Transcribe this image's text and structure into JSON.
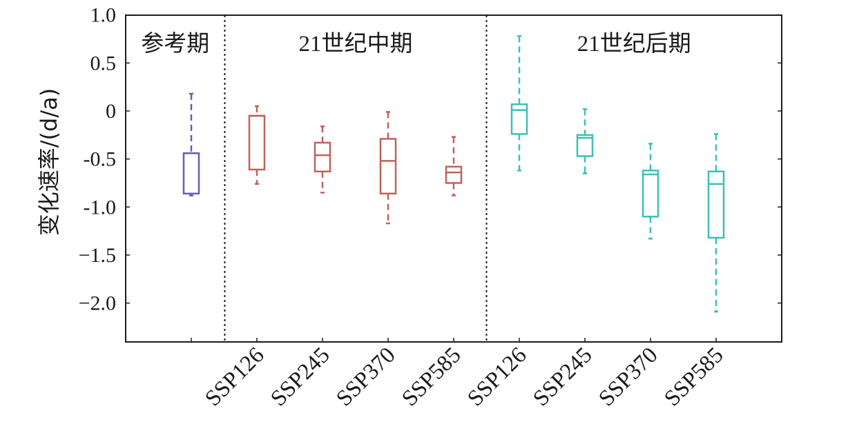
{
  "chart_data": {
    "type": "box",
    "ylabel": "变化速率/(d/a)",
    "ylim": [
      -2.4,
      1.0
    ],
    "yticks": [
      {
        "value": 1.0,
        "label": "1.0"
      },
      {
        "value": 0.5,
        "label": "0.5"
      },
      {
        "value": 0,
        "label": "0"
      },
      {
        "value": -0.5,
        "label": "-0.5"
      },
      {
        "value": -1.0,
        "label": "-1.0"
      },
      {
        "value": -1.5,
        "label": "−1.5"
      },
      {
        "value": -2.0,
        "label": "−2.0"
      }
    ],
    "groups": [
      {
        "label": "参考期",
        "color": "#6a5bb0"
      },
      {
        "label": "21世纪中期",
        "color": "#c0625a"
      },
      {
        "label": "21世纪后期",
        "color": "#3dbfb8"
      }
    ],
    "boxes": [
      {
        "group": 0,
        "label": "",
        "whisker_high": 0.18,
        "q3": -0.44,
        "median": -0.44,
        "q1": -0.86,
        "whisker_low": -0.88
      },
      {
        "group": 1,
        "label": "SSP126",
        "whisker_high": 0.05,
        "q3": -0.05,
        "median": -0.05,
        "q1": -0.61,
        "whisker_low": -0.76
      },
      {
        "group": 1,
        "label": "SSP245",
        "whisker_high": -0.16,
        "q3": -0.33,
        "median": -0.46,
        "q1": -0.63,
        "whisker_low": -0.85
      },
      {
        "group": 1,
        "label": "SSP370",
        "whisker_high": -0.01,
        "q3": -0.29,
        "median": -0.52,
        "q1": -0.86,
        "whisker_low": -1.17
      },
      {
        "group": 1,
        "label": "SSP585",
        "whisker_high": -0.27,
        "q3": -0.58,
        "median": -0.64,
        "q1": -0.75,
        "whisker_low": -0.88
      },
      {
        "group": 2,
        "label": "SSP126",
        "whisker_high": 0.78,
        "q3": 0.07,
        "median": 0.01,
        "q1": -0.24,
        "whisker_low": -0.62
      },
      {
        "group": 2,
        "label": "SSP245",
        "whisker_high": 0.02,
        "q3": -0.25,
        "median": -0.28,
        "q1": -0.47,
        "whisker_low": -0.65
      },
      {
        "group": 2,
        "label": "SSP370",
        "whisker_high": -0.34,
        "q3": -0.62,
        "median": -0.66,
        "q1": -1.1,
        "whisker_low": -1.33
      },
      {
        "group": 2,
        "label": "SSP585",
        "whisker_high": -0.24,
        "q3": -0.63,
        "median": -0.76,
        "q1": -1.32,
        "whisker_low": -2.09
      }
    ],
    "grid": false
  }
}
